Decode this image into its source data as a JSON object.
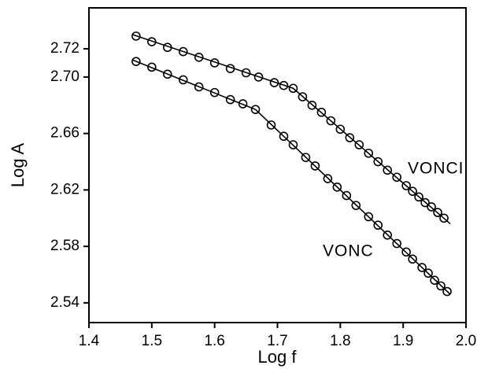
{
  "chart_data": {
    "type": "scatter",
    "xlabel": "Log f",
    "ylabel": "Log A",
    "xlim": [
      1.4,
      2.0
    ],
    "xticks": [
      1.4,
      1.5,
      1.6,
      1.7,
      1.8,
      1.9,
      {
        "value": 2,
        "label": "2.0"
      }
    ],
    "ylim": [
      2.526,
      2.749
    ],
    "yticks": [
      2.54,
      2.58,
      2.62,
      2.66,
      {
        "value": 2.7,
        "label": "2.70"
      },
      2.72
    ],
    "series": [
      {
        "name": "VONCI",
        "color": "#000000",
        "x": [
          1.475,
          1.5,
          1.525,
          1.55,
          1.575,
          1.6,
          1.625,
          1.65,
          1.67,
          1.695,
          1.71,
          1.725,
          1.74,
          1.755,
          1.77,
          1.785,
          1.8,
          1.815,
          1.83,
          1.845,
          1.86,
          1.875,
          1.89,
          1.905,
          1.915,
          1.925,
          1.935,
          1.945,
          1.955,
          1.965
        ],
        "values": [
          2.729,
          2.725,
          2.721,
          2.718,
          2.714,
          2.71,
          2.706,
          2.703,
          2.7,
          2.696,
          2.694,
          2.692,
          2.686,
          2.68,
          2.675,
          2.669,
          2.663,
          2.657,
          2.652,
          2.646,
          2.64,
          2.634,
          2.629,
          2.623,
          2.619,
          2.615,
          2.611,
          2.608,
          2.604,
          2.6
        ],
        "fit_x": [
          1.47,
          1.725,
          1.975
        ],
        "fit_y": [
          2.73,
          2.692,
          2.596
        ]
      },
      {
        "name": "VONC",
        "color": "#000000",
        "x": [
          1.475,
          1.5,
          1.525,
          1.55,
          1.575,
          1.6,
          1.625,
          1.645,
          1.665,
          1.69,
          1.71,
          1.725,
          1.745,
          1.76,
          1.78,
          1.795,
          1.81,
          1.825,
          1.845,
          1.86,
          1.875,
          1.89,
          1.905,
          1.915,
          1.93,
          1.94,
          1.95,
          1.96,
          1.97
        ],
        "values": [
          2.711,
          2.707,
          2.702,
          2.698,
          2.693,
          2.689,
          2.684,
          2.681,
          2.677,
          2.666,
          2.658,
          2.652,
          2.643,
          2.637,
          2.628,
          2.622,
          2.616,
          2.609,
          2.601,
          2.595,
          2.588,
          2.582,
          2.576,
          2.571,
          2.565,
          2.561,
          2.556,
          2.552,
          2.548
        ],
        "fit_x": [
          1.47,
          1.665,
          1.975
        ],
        "fit_y": [
          2.712,
          2.677,
          2.546
        ]
      }
    ]
  }
}
